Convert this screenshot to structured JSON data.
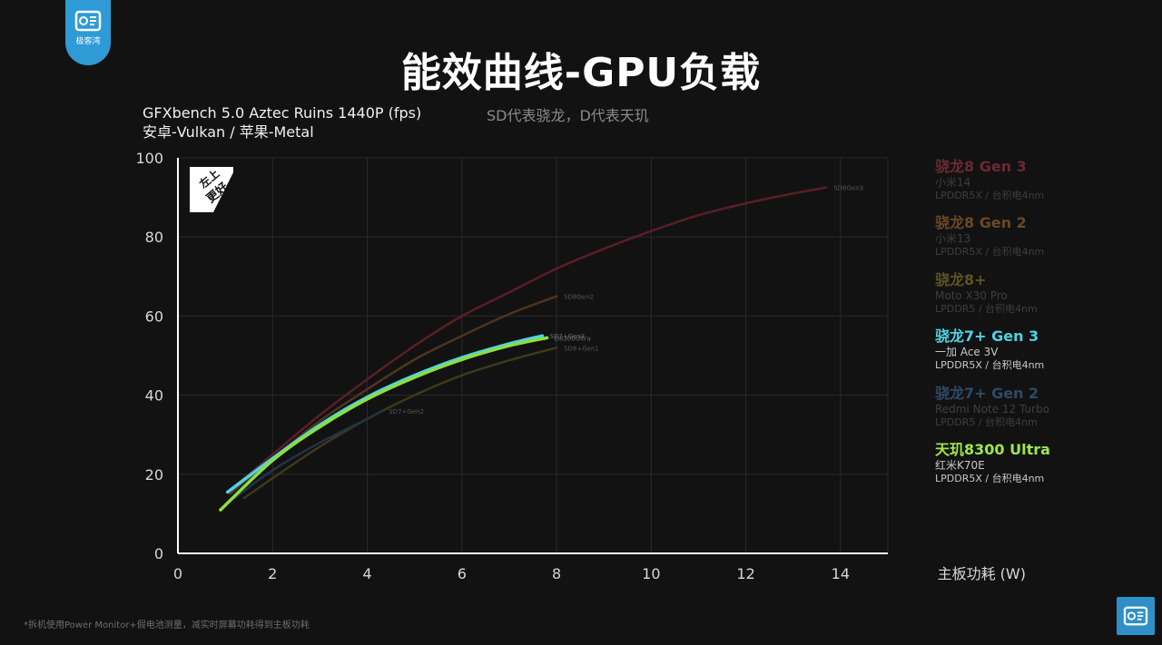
{
  "header": {
    "logo_text": "极客湾",
    "title": "能效曲线-GPU负载",
    "benchmark_line1": "GFXbench 5.0 Aztec Ruins 1440P (fps)",
    "benchmark_line2": "安卓-Vulkan / 苹果-Metal",
    "note": "SD代表骁龙，D代表天玑"
  },
  "badge": {
    "line1": "左上",
    "line2": "更好"
  },
  "footnote": "*拆机使用Power Monitor+假电池测量，减实时屏幕功耗得到主板功耗",
  "chart_data": {
    "type": "line",
    "title": "能效曲线-GPU负载",
    "xlabel": "主板功耗 (W)",
    "ylabel": "",
    "xlim": [
      0,
      15
    ],
    "ylim": [
      0,
      100
    ],
    "xticks": [
      0,
      2,
      4,
      6,
      8,
      10,
      12,
      14
    ],
    "yticks": [
      0,
      20,
      40,
      60,
      80,
      100
    ],
    "grid": true,
    "legend_position": "right",
    "series": [
      {
        "name": "骁龙8 Gen 3",
        "device": "小米14",
        "memory": "LPDDR5X / 台积电4nm",
        "curve_label": "SD8Gen3",
        "color": "#5a1e26",
        "legend_color": "#6a2a30",
        "sub_color": "#3e3e3e",
        "dimmed": true,
        "points": [
          [
            1.1,
            16
          ],
          [
            2,
            25
          ],
          [
            3,
            35
          ],
          [
            4,
            44
          ],
          [
            5,
            52.5
          ],
          [
            6,
            60
          ],
          [
            7,
            66
          ],
          [
            8,
            72
          ],
          [
            9,
            77
          ],
          [
            10,
            81.5
          ],
          [
            11,
            85.5
          ],
          [
            12,
            88.5
          ],
          [
            13,
            91
          ],
          [
            13.7,
            92.5
          ]
        ]
      },
      {
        "name": "骁龙8 Gen 2",
        "device": "小米13",
        "memory": "LPDDR5X / 台积电4nm",
        "curve_label": "SD8Gen2",
        "color": "#4e3520",
        "legend_color": "#6a4826",
        "sub_color": "#3e3e3e",
        "dimmed": true,
        "points": [
          [
            1.1,
            15
          ],
          [
            2,
            24
          ],
          [
            3,
            33.5
          ],
          [
            4,
            41.5
          ],
          [
            5,
            49
          ],
          [
            6,
            55
          ],
          [
            7,
            60.5
          ],
          [
            8,
            65
          ]
        ]
      },
      {
        "name": "骁龙8+",
        "device": "Moto X30 Pro",
        "memory": "LPDDR5 / 台积电4nm",
        "curve_label": "SD8+Gen1",
        "color": "#3e3a1a",
        "legend_color": "#5c5224",
        "sub_color": "#3e3e3e",
        "dimmed": true,
        "points": [
          [
            1.4,
            14
          ],
          [
            2,
            19
          ],
          [
            3,
            27
          ],
          [
            4,
            34
          ],
          [
            5,
            40
          ],
          [
            6,
            45
          ],
          [
            7,
            48.8
          ],
          [
            8,
            52
          ]
        ]
      },
      {
        "name": "骁龙7+ Gen 3",
        "device": "一加 Ace 3V",
        "memory": "LPDDR5X / 台积电4nm",
        "curve_label": "SD7+Gen3",
        "color": "#4fd3e2",
        "legend_color": "#4fd3e2",
        "sub_color": "#c8c8c8",
        "dimmed": false,
        "points": [
          [
            1.05,
            15.5
          ],
          [
            2,
            24
          ],
          [
            3,
            32.5
          ],
          [
            4,
            39.5
          ],
          [
            5,
            45
          ],
          [
            6,
            49.5
          ],
          [
            7,
            53
          ],
          [
            7.7,
            55
          ]
        ]
      },
      {
        "name": "骁龙7+ Gen 2",
        "device": "Redmi Note 12 Turbo",
        "memory": "LPDDR5 / 台积电4nm",
        "curve_label": "SD7+Gen2",
        "color": "#203448",
        "legend_color": "#2e4a66",
        "sub_color": "#3e3e3e",
        "dimmed": true,
        "points": [
          [
            1.2,
            14
          ],
          [
            2,
            21
          ],
          [
            3,
            28
          ],
          [
            4,
            34
          ],
          [
            4.3,
            36
          ]
        ]
      },
      {
        "name": "天玑8300 Ultra",
        "device": "红米K70E",
        "memory": "LPDDR5X / 台积电4nm",
        "curve_label": "D8300Ultra",
        "color": "#8ede3e",
        "legend_color": "#9ee64a",
        "sub_color": "#c8c8c8",
        "dimmed": false,
        "points": [
          [
            0.9,
            11
          ],
          [
            2,
            23.5
          ],
          [
            3,
            32
          ],
          [
            4,
            39
          ],
          [
            5,
            44.5
          ],
          [
            6,
            49
          ],
          [
            7,
            52.5
          ],
          [
            7.8,
            54.5
          ]
        ]
      }
    ]
  }
}
